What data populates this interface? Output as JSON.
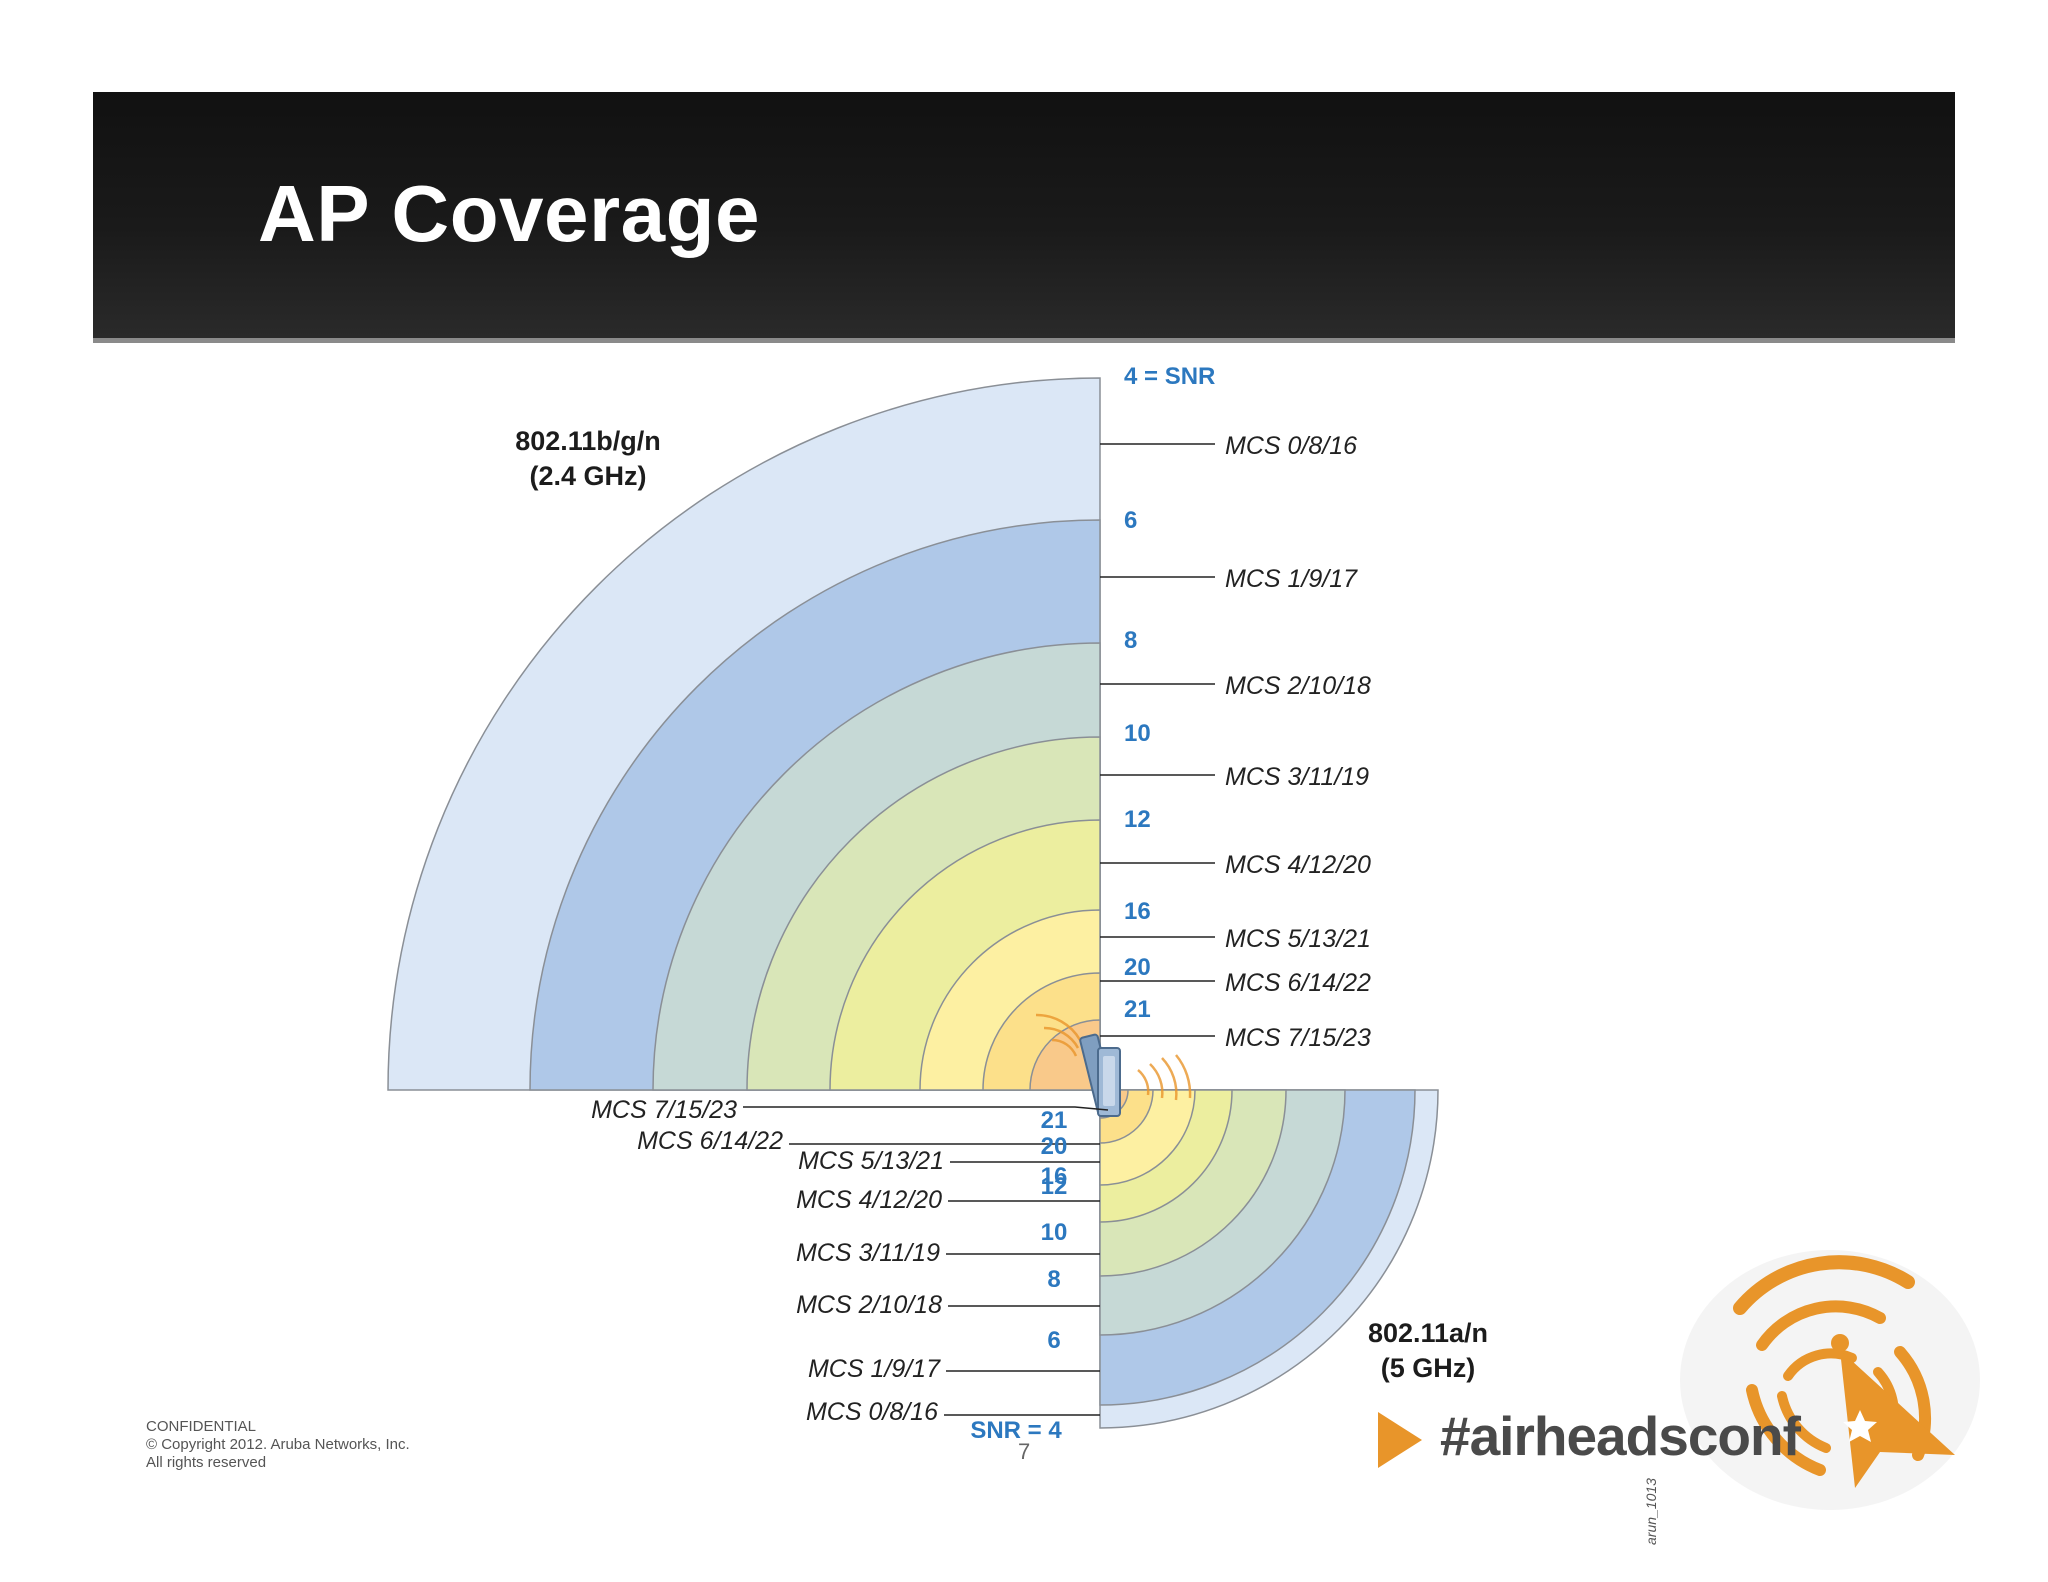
{
  "slide": {
    "title": "AP Coverage",
    "page_number": "7",
    "footer": {
      "line1": "CONFIDENTIAL",
      "line2": "© Copyright 2012. Aruba Networks, Inc.",
      "line3": "All rights reserved"
    },
    "branding": {
      "hashtag": "#airheadsconf",
      "logo_id": "arun_1013"
    }
  },
  "diagram": {
    "band_24": {
      "label_line1": "802.11b/g/n",
      "label_line2": "(2.4 GHz)",
      "snr_header": "4 = SNR",
      "rings": [
        {
          "mcs": "MCS 0/8/16",
          "snr": "4",
          "color": "#dbe7f6"
        },
        {
          "mcs": "MCS 1/9/17",
          "snr": "6",
          "color": "#afc8e8"
        },
        {
          "mcs": "MCS 2/10/18",
          "snr": "8",
          "color": "#c6d9d6"
        },
        {
          "mcs": "MCS 3/11/19",
          "snr": "10",
          "color": "#d9e6b8"
        },
        {
          "mcs": "MCS 4/12/20",
          "snr": "12",
          "color": "#ecee9f"
        },
        {
          "mcs": "MCS 5/13/21",
          "snr": "16",
          "color": "#fdf0a2"
        },
        {
          "mcs": "MCS 6/14/22",
          "snr": "20",
          "color": "#fce08a"
        },
        {
          "mcs": "MCS 7/15/23",
          "snr": "21",
          "color": "#f9c98a"
        }
      ]
    },
    "band_5": {
      "label_line1": "802.11a/n",
      "label_line2": "(5 GHz)",
      "snr_footer": "SNR = 4",
      "rings": [
        {
          "mcs": "MCS 0/8/16",
          "snr": "4",
          "color": "#dbe7f6"
        },
        {
          "mcs": "MCS 1/9/17",
          "snr": "6",
          "color": "#afc8e8"
        },
        {
          "mcs": "MCS 2/10/18",
          "snr": "8",
          "color": "#c6d9d6"
        },
        {
          "mcs": "MCS 3/11/19",
          "snr": "10",
          "color": "#d9e6b8"
        },
        {
          "mcs": "MCS 4/12/20",
          "snr": "12",
          "color": "#ecee9f"
        },
        {
          "mcs": "MCS 5/13/21",
          "snr": "16",
          "color": "#fdf0a2"
        },
        {
          "mcs": "MCS 6/14/22",
          "snr": "20",
          "color": "#fce08a"
        },
        {
          "mcs": "MCS 7/15/23",
          "snr": "21",
          "color": "#f9c98a"
        }
      ]
    }
  },
  "colors": {
    "title_bar": "#141414",
    "snr_text": "#2c78bf",
    "ring_stroke": "#8a8f96",
    "logo_orange": "#e8952a"
  },
  "icons": [
    "access-point-icon",
    "signal-waves-icon",
    "play-arrow-icon",
    "airheads-logo-icon"
  ]
}
